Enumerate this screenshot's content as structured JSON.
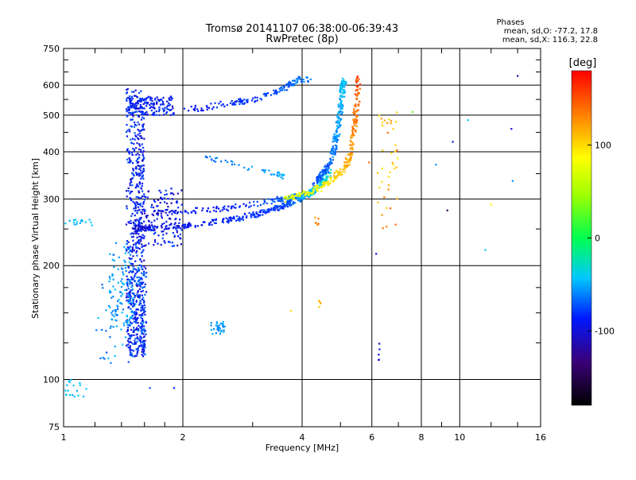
{
  "title": "Tromsø 20141107 06:38:00-06:39:43",
  "subtitle": "RwPretec (8p)",
  "stats": {
    "heading": "Phases",
    "line1": "mean, sd,O: -77.2, 17.8",
    "line2": "mean, sd,X: 116.3, 22.8"
  },
  "chart_data": {
    "type": "scatter",
    "title": "Tromsø 20141107 06:38:00-06:39:43",
    "subtitle": "RwPretec (8p)",
    "xlabel": "Frequency [MHz]",
    "ylabel": "Stationary phase Virtual Height [km]",
    "x_scale": "log",
    "y_scale": "log",
    "xlim": [
      1,
      16
    ],
    "ylim": [
      75,
      750
    ],
    "x_ticks": [
      1,
      2,
      4,
      6,
      8,
      10,
      16
    ],
    "x_tick_labels": [
      "1",
      "2",
      "4",
      "6",
      "8",
      "10",
      "16"
    ],
    "x_minor_ticks": [
      1.2,
      1.4,
      1.6,
      1.8,
      3,
      5,
      7,
      9,
      12,
      14
    ],
    "y_ticks": [
      75,
      100,
      200,
      300,
      400,
      500,
      600,
      750
    ],
    "y_tick_labels": [
      "75",
      "100",
      "200",
      "300",
      "400",
      "500",
      "600",
      "750"
    ],
    "y_minor_ticks": [
      125,
      150,
      175,
      250,
      350,
      450,
      550,
      650,
      700
    ],
    "grid": true,
    "colorbar": {
      "label": "[deg]",
      "min": -180,
      "max": 180,
      "ticks": [
        100,
        0,
        -100
      ],
      "tick_labels": [
        "100",
        "0",
        "-100"
      ]
    },
    "point_color_by": "phase_deg",
    "traces": [
      {
        "kind": "band",
        "x": [
          1.44,
          1.6
        ],
        "y": [
          115,
          590
        ],
        "phase": [
          -115,
          -75
        ],
        "n": 520
      },
      {
        "kind": "band",
        "x": [
          1.46,
          1.62
        ],
        "y": [
          115,
          200
        ],
        "phase": [
          -110,
          -60
        ],
        "n": 180
      },
      {
        "kind": "band",
        "x": [
          1.3,
          1.5
        ],
        "y": [
          135,
          230
        ],
        "phase": [
          -70,
          -45
        ],
        "n": 90
      },
      {
        "kind": "band",
        "x": [
          1.45,
          1.9
        ],
        "y": [
          500,
          560
        ],
        "phase": [
          -110,
          -80
        ],
        "n": 160
      },
      {
        "kind": "band",
        "x": [
          1.52,
          2.0
        ],
        "y": [
          225,
          320
        ],
        "phase": [
          -120,
          -80
        ],
        "n": 150
      },
      {
        "kind": "band",
        "x": [
          1.2,
          1.5
        ],
        "y": [
          110,
          180
        ],
        "phase": [
          -80,
          -40
        ],
        "n": 40
      },
      {
        "kind": "band",
        "x": [
          2.35,
          2.55
        ],
        "y": [
          132,
          142
        ],
        "phase": [
          -70,
          -50
        ],
        "n": 30
      },
      {
        "kind": "band",
        "x": [
          1.0,
          1.15
        ],
        "y": [
          90,
          100
        ],
        "phase": [
          -55,
          -40
        ],
        "n": 18
      },
      {
        "kind": "band",
        "x": [
          1.0,
          1.2
        ],
        "y": [
          255,
          265
        ],
        "phase": [
          -55,
          -40
        ],
        "n": 16
      },
      {
        "kind": "curve",
        "x": [
          1.5,
          1.65,
          2.0,
          2.5,
          3.0,
          3.5,
          3.9,
          4.2,
          4.5,
          4.7
        ],
        "y": [
          250,
          252,
          255,
          262,
          272,
          285,
          298,
          312,
          330,
          355
        ],
        "phase": [
          -110,
          -105,
          -100,
          -95,
          -90,
          -85,
          -70,
          -50,
          -40,
          -30
        ],
        "n": 360
      },
      {
        "kind": "curve",
        "x": [
          1.6,
          2.0,
          2.5,
          3.0,
          3.5,
          3.9,
          4.2,
          4.6
        ],
        "y": [
          275,
          278,
          283,
          290,
          300,
          305,
          310,
          340
        ],
        "phase": [
          -110,
          -100,
          -95,
          -85,
          -75,
          -60,
          -40,
          -30
        ],
        "n": 200
      },
      {
        "kind": "curve",
        "x": [
          2.0,
          2.3,
          2.7,
          3.0,
          3.4,
          3.6,
          3.9,
          4.2
        ],
        "y": [
          515,
          525,
          540,
          550,
          575,
          590,
          620,
          625
        ],
        "phase": [
          -100,
          -95,
          -90,
          -85,
          -80,
          -75,
          -70,
          -65
        ],
        "n": 140
      },
      {
        "kind": "curve",
        "x": [
          4.3,
          4.6,
          4.8,
          4.9,
          5.0,
          5.05,
          5.1
        ],
        "y": [
          330,
          360,
          400,
          450,
          520,
          580,
          620
        ],
        "phase": [
          -80,
          -75,
          -70,
          -60,
          -55,
          -50,
          -45
        ],
        "n": 240
      },
      {
        "kind": "curve",
        "x": [
          3.6,
          4.0,
          4.4,
          4.8,
          5.1,
          5.3,
          5.4,
          5.5,
          5.55
        ],
        "y": [
          300,
          308,
          320,
          340,
          360,
          390,
          450,
          540,
          630
        ],
        "phase": [
          70,
          85,
          95,
          110,
          120,
          130,
          140,
          150,
          160
        ],
        "n": 260
      },
      {
        "kind": "curve",
        "x": [
          2.2,
          2.6,
          3.0,
          3.4,
          3.6
        ],
        "y": [
          390,
          375,
          360,
          350,
          345
        ],
        "phase": [
          -70,
          -65,
          -60,
          -55,
          -50
        ],
        "n": 45
      },
      {
        "kind": "band",
        "x": [
          6.2,
          7.0
        ],
        "y": [
          250,
          510
        ],
        "phase": [
          100,
          150
        ],
        "n": 40
      },
      {
        "kind": "band",
        "x": [
          6.2,
          6.3
        ],
        "y": [
          110,
          125
        ],
        "phase": [
          -120,
          -100
        ],
        "n": 5
      },
      {
        "kind": "band",
        "x": [
          4.3,
          4.4
        ],
        "y": [
          240,
          270
        ],
        "phase": [
          120,
          150
        ],
        "n": 6
      },
      {
        "kind": "band",
        "x": [
          4.4,
          4.5
        ],
        "y": [
          155,
          165
        ],
        "phase": [
          110,
          130
        ],
        "n": 4
      }
    ],
    "isolated_points": [
      {
        "x": 14.0,
        "y": 635,
        "phase": -120
      },
      {
        "x": 13.5,
        "y": 460,
        "phase": -110
      },
      {
        "x": 13.6,
        "y": 335,
        "phase": -60
      },
      {
        "x": 12.0,
        "y": 290,
        "phase": 100
      },
      {
        "x": 11.6,
        "y": 220,
        "phase": -40
      },
      {
        "x": 9.3,
        "y": 280,
        "phase": -140
      },
      {
        "x": 9.6,
        "y": 425,
        "phase": -100
      },
      {
        "x": 8.7,
        "y": 370,
        "phase": -60
      },
      {
        "x": 10.5,
        "y": 485,
        "phase": -40
      },
      {
        "x": 7.6,
        "y": 510,
        "phase": 30
      },
      {
        "x": 5.9,
        "y": 375,
        "phase": 150
      },
      {
        "x": 3.75,
        "y": 152,
        "phase": 110
      },
      {
        "x": 1.9,
        "y": 95,
        "phase": -90
      },
      {
        "x": 1.65,
        "y": 95,
        "phase": -80
      },
      {
        "x": 6.15,
        "y": 215,
        "phase": -100
      }
    ]
  }
}
